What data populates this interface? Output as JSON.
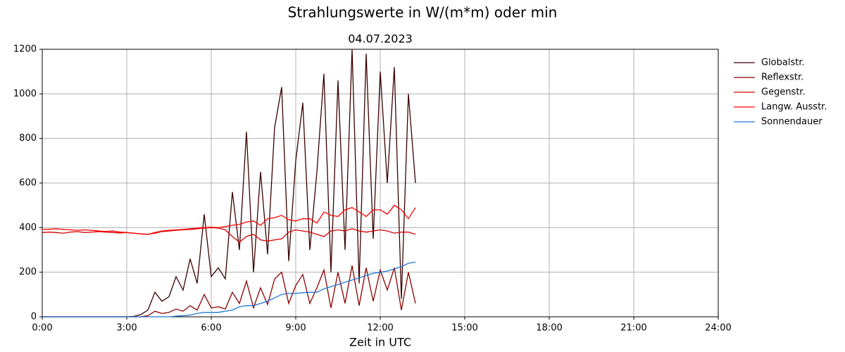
{
  "chart_data": {
    "type": "line",
    "title": "Strahlungswerte in W/(m*m) oder min",
    "subtitle": "04.07.2023",
    "xlabel": "Zeit in UTC",
    "x": [
      0,
      0.25,
      0.5,
      0.75,
      1,
      1.25,
      1.5,
      1.75,
      2,
      2.25,
      2.5,
      2.75,
      3,
      3.25,
      3.5,
      3.75,
      4,
      4.25,
      4.5,
      4.75,
      5,
      5.25,
      5.5,
      5.75,
      6,
      6.25,
      6.5,
      6.75,
      7,
      7.25,
      7.5,
      7.75,
      8,
      8.25,
      8.5,
      8.75,
      9,
      9.25,
      9.5,
      9.75,
      10,
      10.25,
      10.5,
      10.75,
      11,
      11.25,
      11.5,
      11.75,
      12,
      12.25,
      12.5,
      12.75,
      13,
      13.25
    ],
    "series": [
      {
        "name": "Globalstr.",
        "color": "#3a0000",
        "values": [
          0,
          0,
          0,
          0,
          0,
          0,
          0,
          0,
          0,
          0,
          0,
          0,
          0,
          2,
          10,
          30,
          110,
          70,
          90,
          180,
          120,
          260,
          150,
          460,
          180,
          220,
          170,
          560,
          300,
          830,
          200,
          650,
          280,
          850,
          1030,
          250,
          700,
          960,
          300,
          650,
          1090,
          200,
          1060,
          300,
          1200,
          150,
          1180,
          350,
          1100,
          600,
          1120,
          80,
          1000,
          600
        ]
      },
      {
        "name": "Reflexstr.",
        "color": "#8b0000",
        "values": [
          0,
          0,
          0,
          0,
          0,
          0,
          0,
          0,
          0,
          0,
          0,
          0,
          0,
          0,
          0,
          5,
          25,
          15,
          20,
          35,
          25,
          50,
          30,
          100,
          40,
          45,
          35,
          110,
          60,
          160,
          40,
          130,
          55,
          170,
          200,
          60,
          140,
          190,
          60,
          130,
          210,
          40,
          200,
          60,
          230,
          50,
          220,
          70,
          210,
          120,
          220,
          30,
          200,
          60
        ]
      },
      {
        "name": "Gegenstr.",
        "color": "#d40000",
        "values": [
          378,
          380,
          378,
          375,
          380,
          382,
          378,
          380,
          382,
          380,
          378,
          376,
          378,
          375,
          372,
          370,
          375,
          382,
          385,
          388,
          390,
          392,
          395,
          398,
          400,
          398,
          390,
          360,
          335,
          360,
          370,
          345,
          340,
          345,
          350,
          380,
          390,
          385,
          380,
          370,
          360,
          385,
          390,
          385,
          395,
          385,
          380,
          385,
          390,
          385,
          375,
          380,
          380,
          370
        ]
      },
      {
        "name": "Langw. Ausstr.",
        "color": "#ff0000",
        "values": [
          392,
          393,
          395,
          392,
          390,
          388,
          390,
          388,
          385,
          383,
          385,
          380,
          378,
          375,
          372,
          370,
          378,
          385,
          388,
          390,
          392,
          395,
          398,
          400,
          402,
          400,
          405,
          410,
          415,
          425,
          430,
          410,
          440,
          445,
          455,
          435,
          430,
          440,
          440,
          420,
          470,
          455,
          450,
          480,
          490,
          470,
          450,
          480,
          480,
          460,
          500,
          480,
          440,
          490
        ]
      },
      {
        "name": "Sonnendauer",
        "color": "#1f77d4",
        "values": [
          0,
          0,
          0,
          0,
          0,
          0,
          0,
          0,
          0,
          0,
          0,
          0,
          0,
          0,
          0,
          0,
          0,
          0,
          0,
          3,
          5,
          8,
          15,
          20,
          20,
          20,
          25,
          30,
          45,
          50,
          50,
          60,
          70,
          85,
          100,
          105,
          105,
          108,
          110,
          110,
          125,
          135,
          145,
          155,
          165,
          175,
          185,
          195,
          200,
          205,
          215,
          225,
          240,
          245
        ]
      }
    ],
    "xlim": [
      0,
      24
    ],
    "xticks": [
      {
        "value": 0,
        "label": "0:00"
      },
      {
        "value": 3,
        "label": "3:00"
      },
      {
        "value": 6,
        "label": "6:00"
      },
      {
        "value": 9,
        "label": "9:00"
      },
      {
        "value": 12,
        "label": "12:00"
      },
      {
        "value": 15,
        "label": "15:00"
      },
      {
        "value": 18,
        "label": "18:00"
      },
      {
        "value": 21,
        "label": "21:00"
      },
      {
        "value": 24,
        "label": "24:00"
      }
    ],
    "ylim": [
      0,
      1200
    ],
    "yticks": [
      0,
      200,
      400,
      600,
      800,
      1000,
      1200
    ],
    "grid": true,
    "legend": "outside-right"
  }
}
